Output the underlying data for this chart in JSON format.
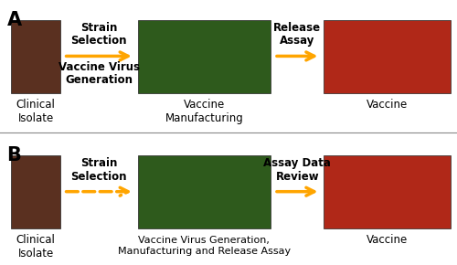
{
  "figsize": [
    5.0,
    2.9
  ],
  "dpi": 100,
  "bg_color": "#ffffff",
  "arrow_color": "#FFA500",
  "text_color": "#000000",
  "label_fontsize": 13,
  "arrow_text_fontsize": 8.5,
  "img_label_fontsize": 8.5,
  "panels": [
    {
      "label": "A",
      "img1_color": "#5A3020",
      "img1_label": "Clinical\nIsolate",
      "img2_color": "#2E5A1C",
      "img2_label": "Vaccine\nManufacturing",
      "img3_color": "#B02818",
      "img3_label": "Vaccine",
      "arrow1_text": "Strain\nSelection\n\nVaccine Virus\nGeneration",
      "arrow2_text": "Release\nAssay",
      "arrow1_dashed": false,
      "arrow2_dashed": false
    },
    {
      "label": "B",
      "img1_color": "#5A3020",
      "img1_label": "Clinical\nIsolate",
      "img2_color": "#2E5A1C",
      "img2_label": "Vaccine Virus Generation,\nManufacturing and Release Assay",
      "img3_color": "#B02818",
      "img3_label": "Vaccine",
      "arrow1_text": "Strain\nSelection",
      "arrow2_text": "Assay Data\nReview",
      "arrow1_dashed": true,
      "arrow2_dashed": false
    }
  ]
}
